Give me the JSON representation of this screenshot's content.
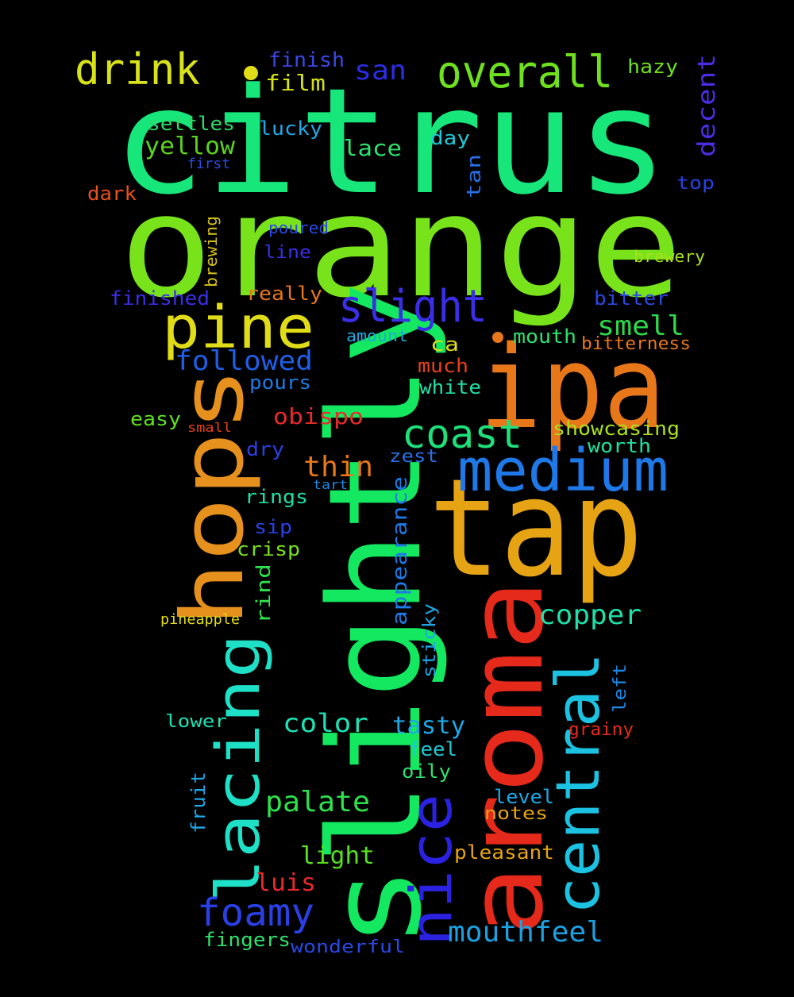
{
  "words": [
    {
      "text": "citrus",
      "color": "#17e67a"
    },
    {
      "text": "orange",
      "color": "#78e31a"
    },
    {
      "text": "slightly",
      "color": "#13e860"
    },
    {
      "text": "aroma",
      "color": "#e5291a"
    },
    {
      "text": "tap",
      "color": "#e6a313"
    },
    {
      "text": "ipa",
      "color": "#e8771a"
    },
    {
      "text": "hops",
      "color": "#e6901d"
    },
    {
      "text": "medium",
      "color": "#1e78e8"
    },
    {
      "text": "central",
      "color": "#1cc2e2"
    },
    {
      "text": "lacing",
      "color": "#1ee0c6"
    },
    {
      "text": "nice",
      "color": "#2a22e0"
    },
    {
      "text": "pine",
      "color": "#e0dc18"
    },
    {
      "text": "slight",
      "color": "#3a2ee6"
    },
    {
      "text": "overall",
      "color": "#6ee01e"
    },
    {
      "text": "drink",
      "color": "#d8e21a"
    },
    {
      "text": "coast",
      "color": "#1ee07a"
    },
    {
      "text": "foamy",
      "color": "#2a40e6"
    },
    {
      "text": "mouthfeel",
      "color": "#1ca0e0"
    },
    {
      "text": "copper",
      "color": "#1ee0a8"
    },
    {
      "text": "palate",
      "color": "#2ee04c"
    },
    {
      "text": "thin",
      "color": "#e8761a"
    },
    {
      "text": "followed",
      "color": "#1f5ee6"
    },
    {
      "text": "smell",
      "color": "#2ed84c"
    },
    {
      "text": "san",
      "color": "#2a2ee6"
    },
    {
      "text": "yellow",
      "color": "#5ed21e"
    },
    {
      "text": "color",
      "color": "#1ee0b4"
    },
    {
      "text": "tasty",
      "color": "#1ea8e6"
    },
    {
      "text": "obispo",
      "color": "#e82a2a"
    },
    {
      "text": "light",
      "color": "#58e020"
    },
    {
      "text": "appearance",
      "color": "#1e7ae6"
    },
    {
      "text": "decent",
      "color": "#4a2ee6"
    },
    {
      "text": "lace",
      "color": "#2ee06e"
    },
    {
      "text": "film",
      "color": "#d4e018"
    },
    {
      "text": "finish",
      "color": "#3a48e6"
    },
    {
      "text": "hazy",
      "color": "#6ee01e"
    },
    {
      "text": "settles",
      "color": "#2ed86a"
    },
    {
      "text": "lucky",
      "color": "#1ea8e6"
    },
    {
      "text": "day",
      "color": "#1ec8d4"
    },
    {
      "text": "tan",
      "color": "#2a6ee6"
    },
    {
      "text": "top",
      "color": "#2a40e6"
    },
    {
      "text": "first",
      "color": "#2a4ee6"
    },
    {
      "text": "dark",
      "color": "#e8501a"
    },
    {
      "text": "poured",
      "color": "#2a48e6"
    },
    {
      "text": "line",
      "color": "#3a2ee6"
    },
    {
      "text": "brewery",
      "color": "#a8e01e"
    },
    {
      "text": "brewing",
      "color": "#d4c018"
    },
    {
      "text": "finished",
      "color": "#3a2ee6"
    },
    {
      "text": "really",
      "color": "#e8761a"
    },
    {
      "text": "bitter",
      "color": "#2a48e6"
    },
    {
      "text": "amount",
      "color": "#1ea8e0"
    },
    {
      "text": "ca",
      "color": "#e0dc18"
    },
    {
      "text": "mouth",
      "color": "#2ee06e"
    },
    {
      "text": "bitterness",
      "color": "#e8761a"
    },
    {
      "text": "much",
      "color": "#e8401a"
    },
    {
      "text": "white",
      "color": "#1ee0a8"
    },
    {
      "text": "pours",
      "color": "#1e7ae6"
    },
    {
      "text": "easy",
      "color": "#5ee020"
    },
    {
      "text": "small",
      "color": "#e8401a"
    },
    {
      "text": "showcasing",
      "color": "#a8e01e"
    },
    {
      "text": "worth",
      "color": "#1ee0a0"
    },
    {
      "text": "dry",
      "color": "#2a40e6"
    },
    {
      "text": "zest",
      "color": "#2a6ee6"
    },
    {
      "text": "tart",
      "color": "#1e88e6"
    },
    {
      "text": "rings",
      "color": "#1ee0a8"
    },
    {
      "text": "sip",
      "color": "#2a40e6"
    },
    {
      "text": "crisp",
      "color": "#78e01e"
    },
    {
      "text": "rind",
      "color": "#2ee04c"
    },
    {
      "text": "pineapple",
      "color": "#e0dc18"
    },
    {
      "text": "sticky",
      "color": "#1ea8e6"
    },
    {
      "text": "left",
      "color": "#1e88e6"
    },
    {
      "text": "grainy",
      "color": "#e8291a"
    },
    {
      "text": "lower",
      "color": "#1ee0b4"
    },
    {
      "text": "feel",
      "color": "#1ec8d4"
    },
    {
      "text": "oily",
      "color": "#2ee06e"
    },
    {
      "text": "fruit",
      "color": "#1ea8e6"
    },
    {
      "text": "level",
      "color": "#1ea8e6"
    },
    {
      "text": "notes",
      "color": "#e6a313"
    },
    {
      "text": "pleasant",
      "color": "#e6a313"
    },
    {
      "text": "luis",
      "color": "#e82a2a"
    },
    {
      "text": "fingers",
      "color": "#2ee06e"
    },
    {
      "text": "wonderful",
      "color": "#2a48e6"
    }
  ]
}
